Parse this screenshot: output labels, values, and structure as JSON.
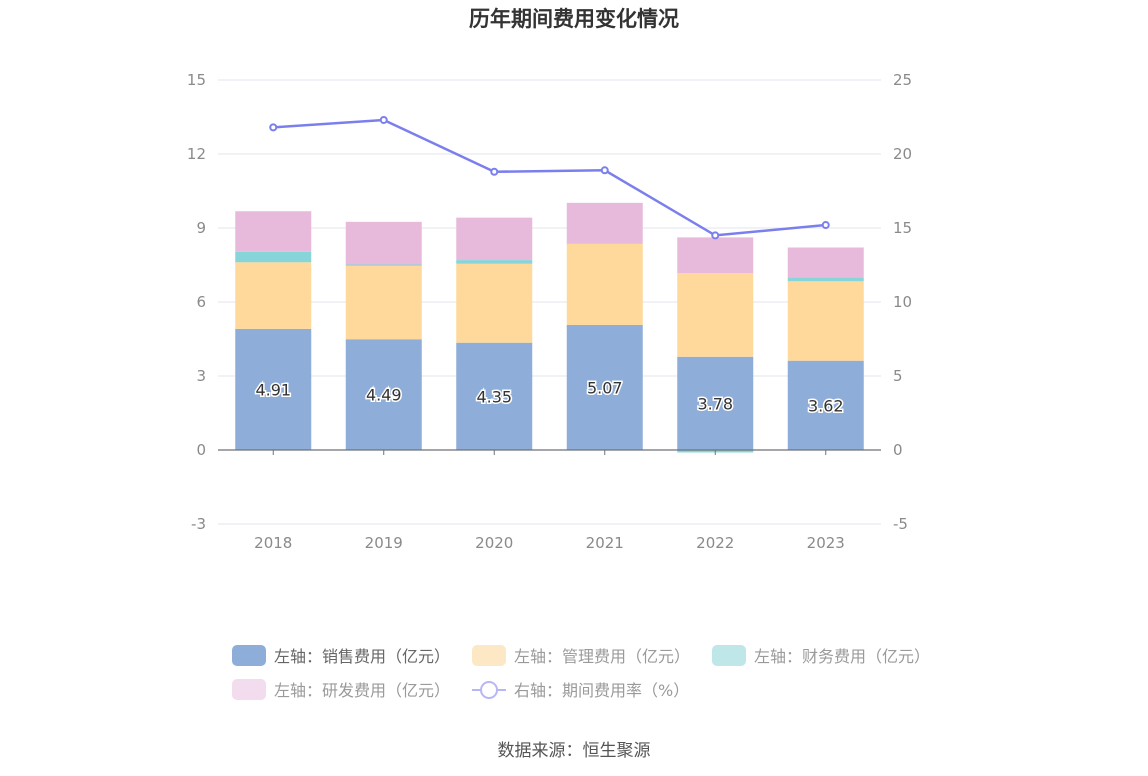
{
  "chart_data": {
    "type": "bar",
    "stacked": true,
    "title": "历年期间费用变化情况",
    "categories": [
      "2018",
      "2019",
      "2020",
      "2021",
      "2022",
      "2023"
    ],
    "left_axis": {
      "ticks": [
        "15",
        "12",
        "9",
        "6",
        "3",
        "0",
        "-3"
      ],
      "range": [
        -3,
        15
      ]
    },
    "right_axis": {
      "ticks": [
        "25",
        "20",
        "15",
        "10",
        "5",
        "0",
        "-5"
      ],
      "range": [
        -5,
        25
      ]
    },
    "series": [
      {
        "name": "左轴：销售费用（亿元）",
        "axis": "left",
        "color": "#8eaed9",
        "values": [
          4.91,
          4.49,
          4.35,
          5.07,
          3.78,
          3.62
        ],
        "labels": [
          "4.91",
          "4.49",
          "4.35",
          "5.07",
          "3.78",
          "3.62"
        ]
      },
      {
        "name": "左轴：管理费用（亿元）",
        "axis": "left",
        "color": "#fed99b",
        "legend_color": "#fde8c5",
        "values": [
          2.7,
          2.98,
          3.2,
          3.3,
          3.39,
          3.22
        ]
      },
      {
        "name": "左轴：财务费用（亿元）",
        "axis": "left",
        "color": "#87d5d8",
        "legend_color": "#bfe6e9",
        "values": [
          0.43,
          0.05,
          0.15,
          0.02,
          -0.1,
          0.15
        ]
      },
      {
        "name": "左轴：研发费用（亿元）",
        "axis": "left",
        "color": "#e7badb",
        "legend_color": "#f2dced",
        "values": [
          1.64,
          1.73,
          1.72,
          1.63,
          1.45,
          1.22
        ]
      },
      {
        "name": "右轴：期间费用率（%）",
        "axis": "right",
        "type": "line",
        "color": "#7b7fee",
        "legend_color": "#b7b7f6",
        "values": [
          21.8,
          22.3,
          18.8,
          18.9,
          14.5,
          15.2
        ]
      }
    ]
  },
  "source": "数据来源：恒生聚源"
}
